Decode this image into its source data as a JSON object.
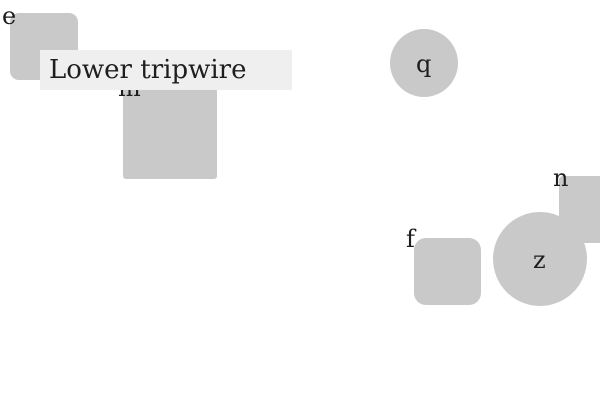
{
  "tooltip": {
    "text": "Lower tripwire"
  },
  "shapes": {
    "e": {
      "label": "e"
    },
    "m": {
      "label": "m"
    },
    "q": {
      "label": "q"
    },
    "n": {
      "label": "n"
    },
    "f": {
      "label": "f"
    },
    "z": {
      "label": "z"
    }
  },
  "colors": {
    "shape_fill": "#c9c9c9",
    "tooltip_bg": "#efefef",
    "text": "#1e1e1e",
    "background": "#ffffff"
  }
}
